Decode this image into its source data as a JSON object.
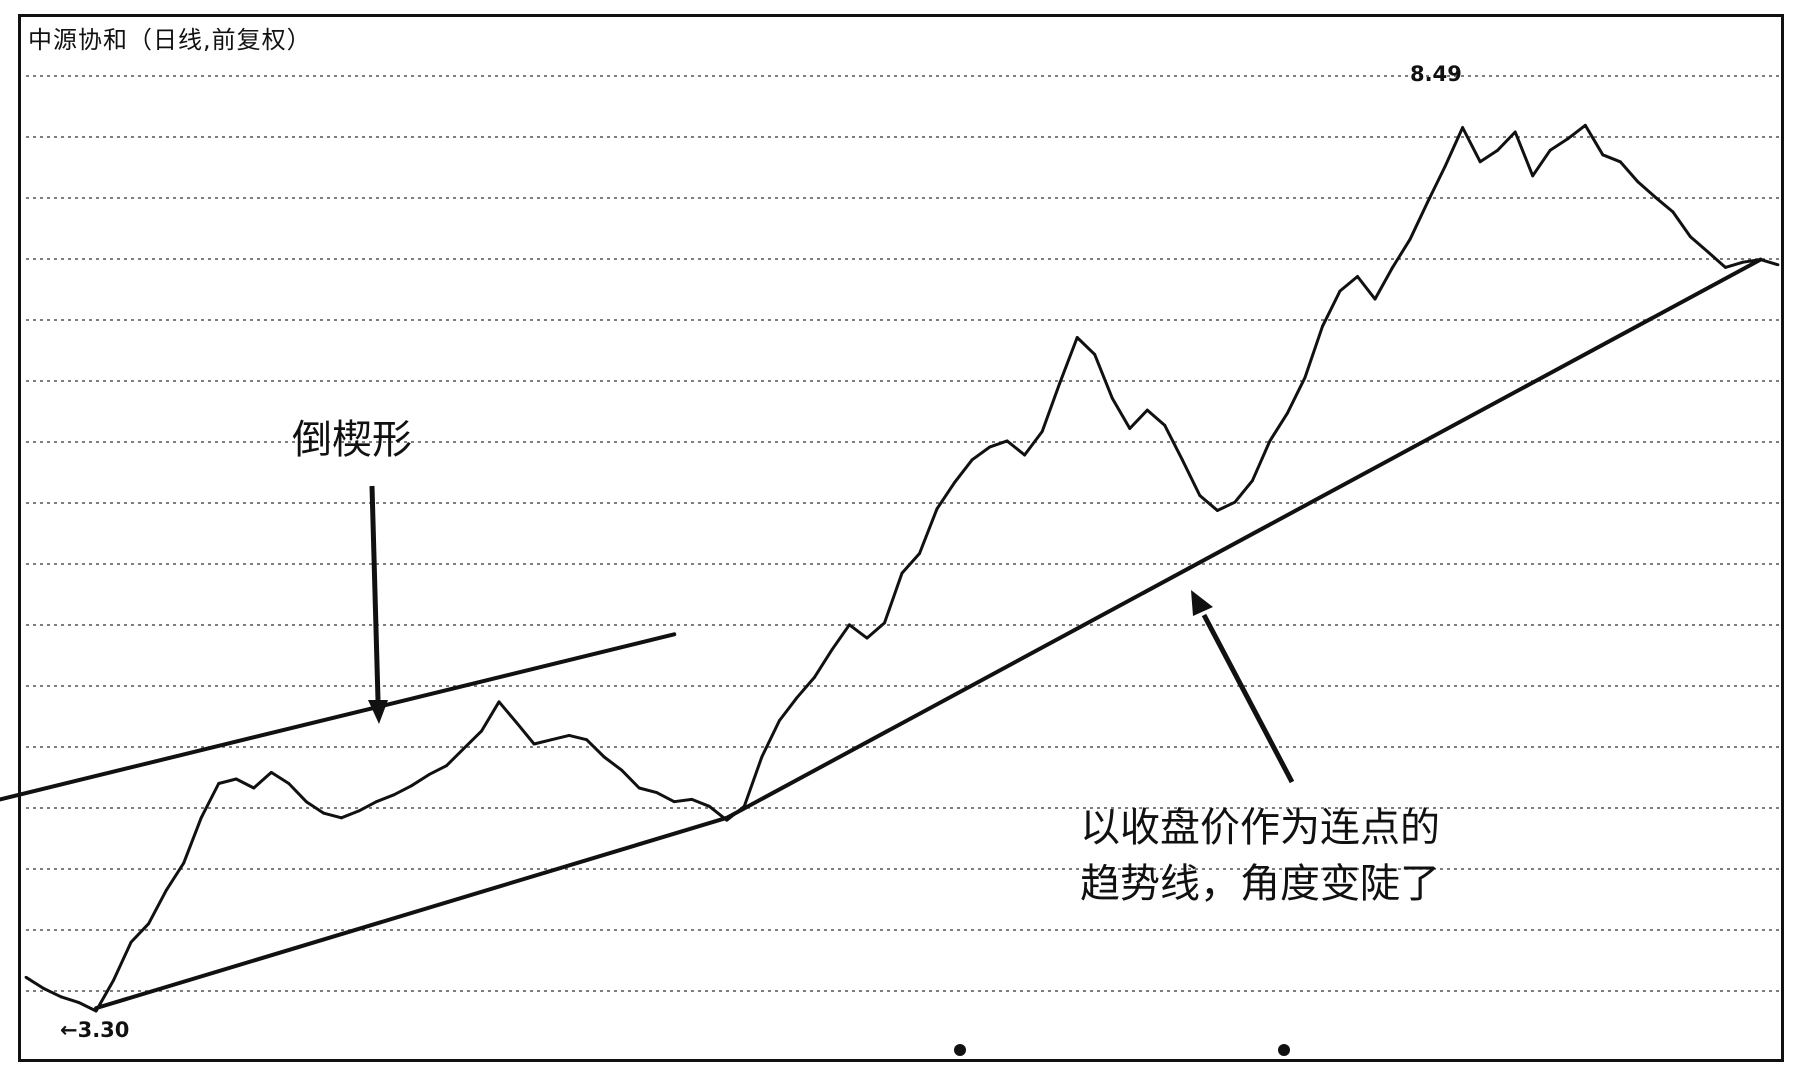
{
  "title": "中源协和（日线,前复权）",
  "annotations": {
    "wedge_label": "倒楔形",
    "trendline_label_line1": "以收盘价作为连点的",
    "trendline_label_line2": "趋势线，角度变陡了"
  },
  "price_labels": {
    "low": "←3.30",
    "high": "8.49"
  },
  "chart_data": {
    "type": "line",
    "title": "中源协和（日线,前复权）",
    "xlabel": "",
    "ylabel": "",
    "y_scale": "log",
    "ylim": [
      3.2,
      9.2
    ],
    "grid": true,
    "low_value": 3.3,
    "high_value": 8.49,
    "series": [
      {
        "values": [
          3.42,
          3.38,
          3.35,
          3.33,
          3.3,
          3.41,
          3.55,
          3.62,
          3.75,
          3.86,
          4.05,
          4.2,
          4.22,
          4.18,
          4.25,
          4.2,
          4.12,
          4.07,
          4.05,
          4.08,
          4.12,
          4.15,
          4.19,
          4.24,
          4.28,
          4.36,
          4.44,
          4.58,
          4.48,
          4.38,
          4.4,
          4.42,
          4.4,
          4.32,
          4.26,
          4.18,
          4.16,
          4.12,
          4.13,
          4.1,
          4.04,
          4.1,
          4.32,
          4.49,
          4.6,
          4.7,
          4.84,
          4.97,
          4.9,
          4.98,
          5.25,
          5.36,
          5.62,
          5.78,
          5.92,
          6.0,
          6.04,
          5.95,
          6.1,
          6.42,
          6.74,
          6.62,
          6.32,
          6.12,
          6.24,
          6.14,
          5.92,
          5.7,
          5.61,
          5.66,
          5.79,
          6.04,
          6.22,
          6.46,
          6.82,
          7.08,
          7.19,
          7.02,
          7.26,
          7.48,
          7.78,
          8.08,
          8.42,
          8.12,
          8.22,
          8.38,
          8.0,
          8.22,
          8.32,
          8.44,
          8.18,
          8.12,
          7.95,
          7.82,
          7.7,
          7.5,
          7.38,
          7.26,
          7.3,
          7.32,
          7.28
        ]
      }
    ],
    "trendlines": [
      {
        "name": "wedge-upper",
        "from": [
          -2,
          4.12
        ],
        "to": [
          37,
          4.92
        ]
      },
      {
        "name": "long-trend-segment-1",
        "from": [
          4,
          3.31
        ],
        "to": [
          40,
          4.05
        ]
      },
      {
        "name": "long-trend-segment-2",
        "from": [
          40,
          4.05
        ],
        "to": [
          99,
          7.32
        ]
      }
    ]
  }
}
